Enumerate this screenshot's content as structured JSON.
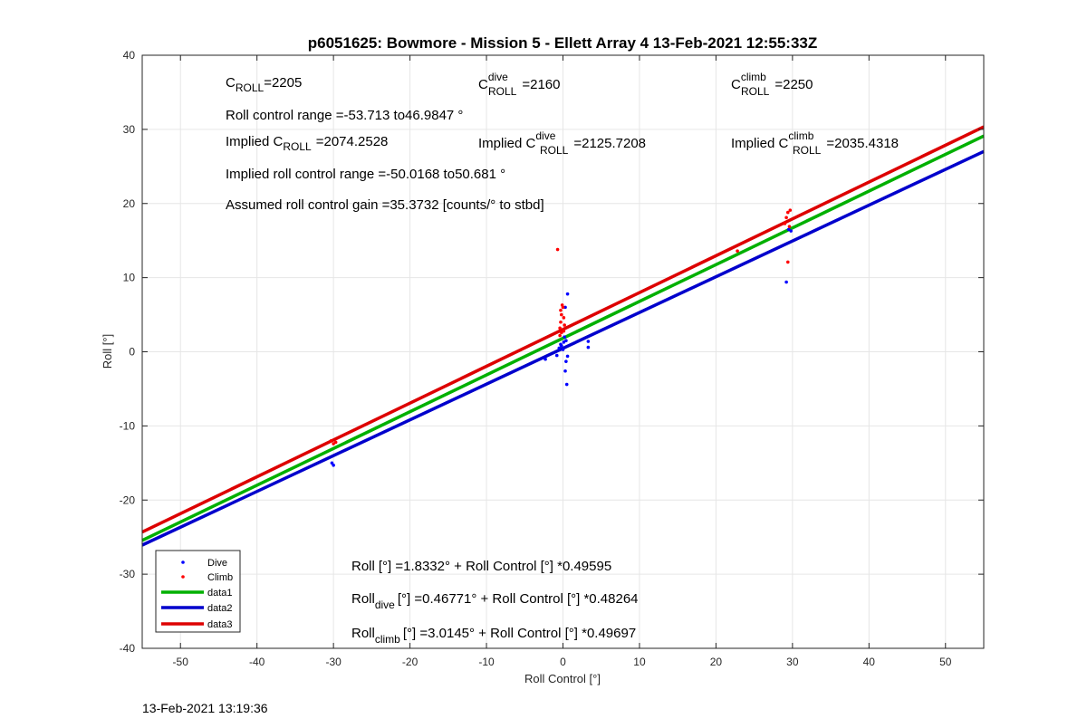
{
  "chart_data": {
    "type": "scatter",
    "title": "p6051625: Bowmore - Mission 5 - Ellett Array 4 13-Feb-2021 12:55:33Z",
    "xlabel": "Roll Control [°]",
    "ylabel": "Roll [°]",
    "xlim": [
      -55,
      55
    ],
    "ylim": [
      -40,
      40
    ],
    "xticks": [
      -50,
      -40,
      -30,
      -20,
      -10,
      0,
      10,
      20,
      30,
      40,
      50
    ],
    "yticks": [
      -40,
      -30,
      -20,
      -10,
      0,
      10,
      20,
      30,
      40
    ],
    "grid": true,
    "legend_position": "bottom-left",
    "series": [
      {
        "name": "Dive",
        "kind": "scatter",
        "color": "#0000ff",
        "points": [
          [
            -30.2,
            -15.0
          ],
          [
            -30.0,
            -15.3
          ],
          [
            -2.3,
            -1.0
          ],
          [
            -0.8,
            -0.5
          ],
          [
            -0.5,
            0.5
          ],
          [
            -0.3,
            1.0
          ],
          [
            0.0,
            0.3
          ],
          [
            0.2,
            2.0
          ],
          [
            0.4,
            1.5
          ],
          [
            0.6,
            -0.6
          ],
          [
            0.4,
            -1.3
          ],
          [
            0.3,
            -2.6
          ],
          [
            0.5,
            -4.4
          ],
          [
            0.6,
            7.8
          ],
          [
            0.3,
            6.0
          ],
          [
            3.3,
            1.4
          ],
          [
            3.3,
            0.6
          ],
          [
            -0.2,
            0.8
          ],
          [
            0.1,
            1.3
          ],
          [
            29.2,
            9.4
          ],
          [
            29.5,
            16.5
          ],
          [
            29.8,
            16.3
          ]
        ]
      },
      {
        "name": "Climb",
        "kind": "scatter",
        "color": "#ff0000",
        "points": [
          [
            -30.3,
            -12.0
          ],
          [
            -30.0,
            -12.4
          ],
          [
            -29.7,
            -12.2
          ],
          [
            -0.7,
            13.8
          ],
          [
            -0.4,
            2.2
          ],
          [
            -0.4,
            3.2
          ],
          [
            -0.3,
            4.0
          ],
          [
            -0.2,
            5.0
          ],
          [
            -0.3,
            5.6
          ],
          [
            -0.1,
            6.3
          ],
          [
            0.0,
            6.0
          ],
          [
            0.1,
            4.6
          ],
          [
            0.2,
            3.6
          ],
          [
            0.1,
            2.8
          ],
          [
            -0.2,
            2.6
          ],
          [
            22.8,
            13.6
          ],
          [
            29.0,
            17.3
          ],
          [
            29.2,
            18.1
          ],
          [
            29.4,
            18.8
          ],
          [
            29.7,
            19.1
          ],
          [
            29.4,
            12.1
          ],
          [
            29.6,
            16.9
          ]
        ]
      },
      {
        "name": "data1",
        "kind": "line",
        "color": "#00b000",
        "intercept": 1.8332,
        "slope": 0.49595
      },
      {
        "name": "data2",
        "kind": "line",
        "color": "#0000cc",
        "intercept": 0.46771,
        "slope": 0.48264
      },
      {
        "name": "data3",
        "kind": "line",
        "color": "#dd0000",
        "intercept": 3.0145,
        "slope": 0.49697
      }
    ],
    "annotations": {
      "c_roll": {
        "base": "C",
        "sub": "ROLL",
        "value": "=2205"
      },
      "c_roll_dive": {
        "base": "C",
        "sup": "dive",
        "sub": "ROLL",
        "value": "=2160"
      },
      "c_roll_climb": {
        "base": "C",
        "sup": "climb",
        "sub": "ROLL",
        "value": "=2250"
      },
      "roll_range": "Roll control range =-53.713 to46.9847 °",
      "implied_c_roll": {
        "prefix": "Implied C",
        "sub": "ROLL",
        "value": "=2074.2528"
      },
      "implied_c_roll_dive": {
        "prefix": "Implied C",
        "sup": "dive",
        "sub": "ROLL",
        "value": "=2125.7208"
      },
      "implied_c_roll_climb": {
        "prefix": "Implied C",
        "sup": "climb",
        "sub": "ROLL",
        "value": "=2035.4318"
      },
      "implied_range": "Implied roll control range =-50.0168 to50.681 °",
      "gain": "Assumed roll control gain =35.3732 [counts/° to stbd]",
      "fit_all": {
        "base": "Roll",
        "sub": "",
        "rest": "[°] =1.8332° + Roll Control [°] *0.49595"
      },
      "fit_dive": {
        "base": "Roll",
        "sub": "dive",
        "rest": "[°] =0.46771° + Roll Control [°] *0.48264"
      },
      "fit_climb": {
        "base": "Roll",
        "sub": "climb",
        "rest": "[°] =3.0145° + Roll Control [°] *0.49697"
      }
    }
  },
  "timestamp": "13-Feb-2021 13:19:36"
}
